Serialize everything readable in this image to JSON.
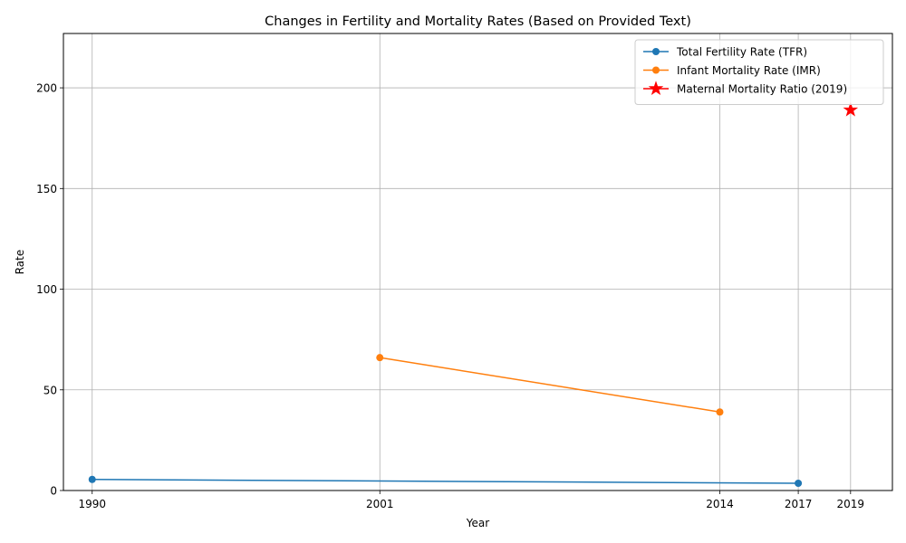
{
  "chart_data": {
    "type": "line",
    "title": "Changes in Fertility and Mortality Rates (Based on Provided Text)",
    "xlabel": "Year",
    "ylabel": "Rate",
    "x_ticks": [
      1990,
      2001,
      2014,
      2017,
      2019
    ],
    "y_ticks": [
      0,
      50,
      100,
      150,
      200
    ],
    "xlim": [
      1988.9,
      2020.6
    ],
    "ylim": [
      0,
      227
    ],
    "grid": true,
    "legend_position": "top-right",
    "series": [
      {
        "name": "Total Fertility Rate (TFR)",
        "color": "#1f77b4",
        "marker": "circle",
        "line": true,
        "points": [
          [
            1990,
            5.5
          ],
          [
            2017,
            3.6
          ]
        ]
      },
      {
        "name": "Infant Mortality Rate (IMR)",
        "color": "#ff7f0e",
        "marker": "circle",
        "line": true,
        "points": [
          [
            2001,
            66
          ],
          [
            2014,
            39
          ]
        ]
      },
      {
        "name": "Maternal Mortality Ratio (2019)",
        "color": "#ff0000",
        "marker": "star",
        "line": false,
        "points": [
          [
            2019,
            189
          ]
        ]
      }
    ]
  }
}
